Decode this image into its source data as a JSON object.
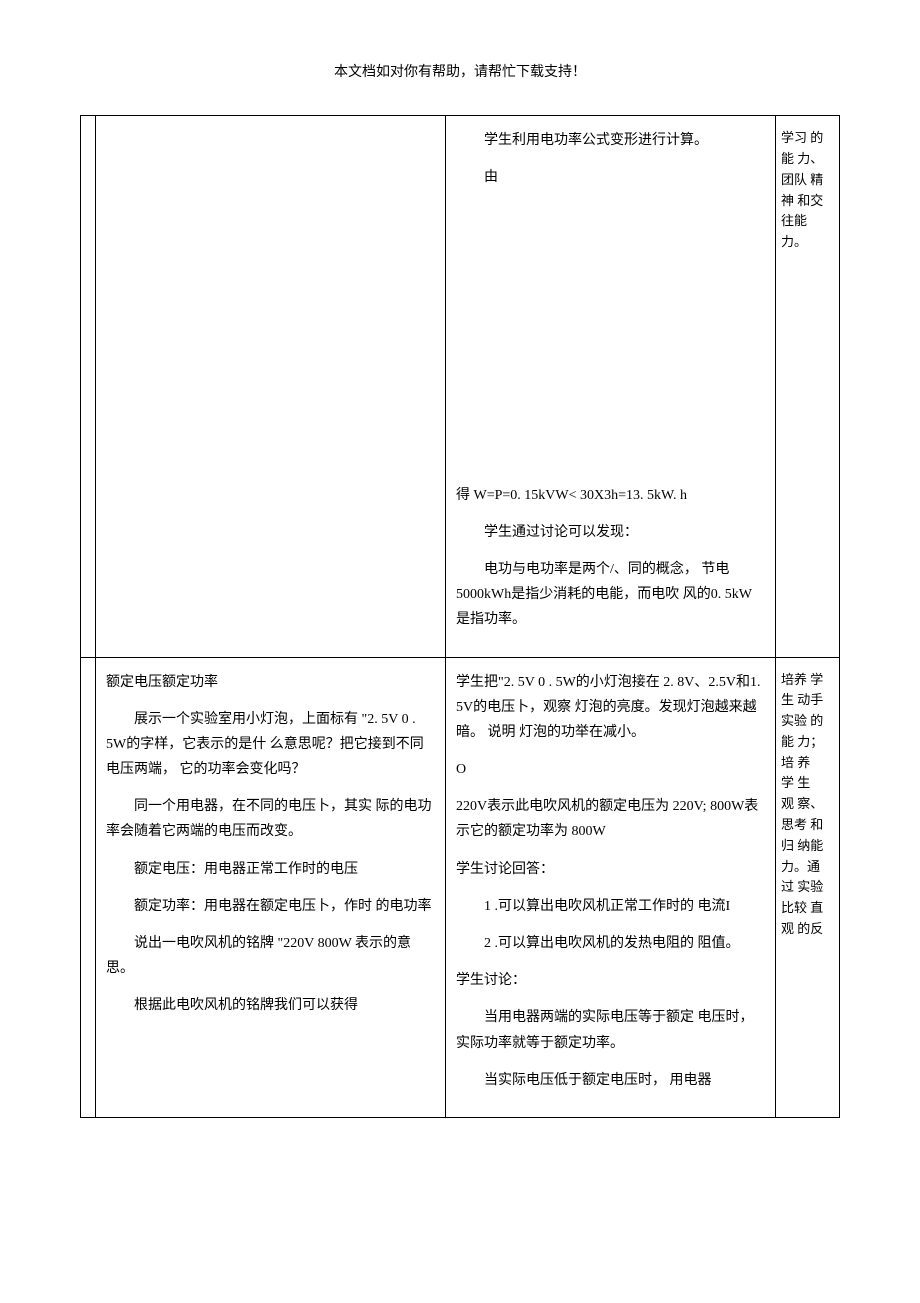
{
  "header": {
    "text": "本文档如对你有帮助，请帮忙下载支持！"
  },
  "row1": {
    "col2": {
      "p1": "学生利用电功率公式变形进行计算。",
      "p2": "由",
      "p3": "得 W=P=0. 15kVW< 30X3h=13. 5kW. h",
      "p4": "学生通过讨论可以发现：",
      "p5": "电功与电功率是两个/、同的概念，  节电5000kWh是指少消耗的电能，而电吹 风的0. 5kW是指功率。"
    },
    "col3": {
      "text": "学习 的能 力、团队 精神 和交 往能 力。"
    }
  },
  "row2": {
    "col1": {
      "title": "额定电压额定功率",
      "p1": "展示一个实验室用小灯泡，上面标有 \"2. 5V 0 . 5W的字样，它表示的是什 么意思呢？把它接到不同电压两端，             它的功率会变化吗？",
      "p2": "同一个用电器，在不同的电压卜，其实 际的电功率会随着它两端的电压而改变。",
      "p3": "额定电压：用电器正常工作时的电压",
      "p4": "额定功率：用电器在额定电压卜，作时 的电功率",
      "p5": "说出一电吹风机的铭牌 \"220V 800W 表示的意思。",
      "p6": "根据此电吹风机的铭牌我们可以获得"
    },
    "col2": {
      "p1": "学生把\"2. 5V 0 . 5W的小灯泡接在 2. 8V、2.5V和1. 5V的电压卜，观察 灯泡的亮度。发现灯泡越来越暗。  说明 灯泡的功举在减小。",
      "p2": "O",
      "p3": "220V表示此电吹风机的额定电压为 220V; 800W表示它的额定功率为 800W",
      "p4": "学生讨论回答：",
      "p5": "1 .可以算出电吹风机正常工作时的 电流I",
      "p6": "2 .可以算出电吹风机的发热电阻的 阻值。",
      "p7": "学生讨论：",
      "p8": "当用电器两端的实际电压等于额定 电压时，实际功率就等于额定功率。",
      "p9": "当实际电压低于额定电压时，  用电器"
    },
    "col3": {
      "text": "培养 学生 动手 实验 的能 力；培 养 学 生 观 察、思考 和归 纳能 力。通过 实验 比较 直观 的反"
    }
  }
}
